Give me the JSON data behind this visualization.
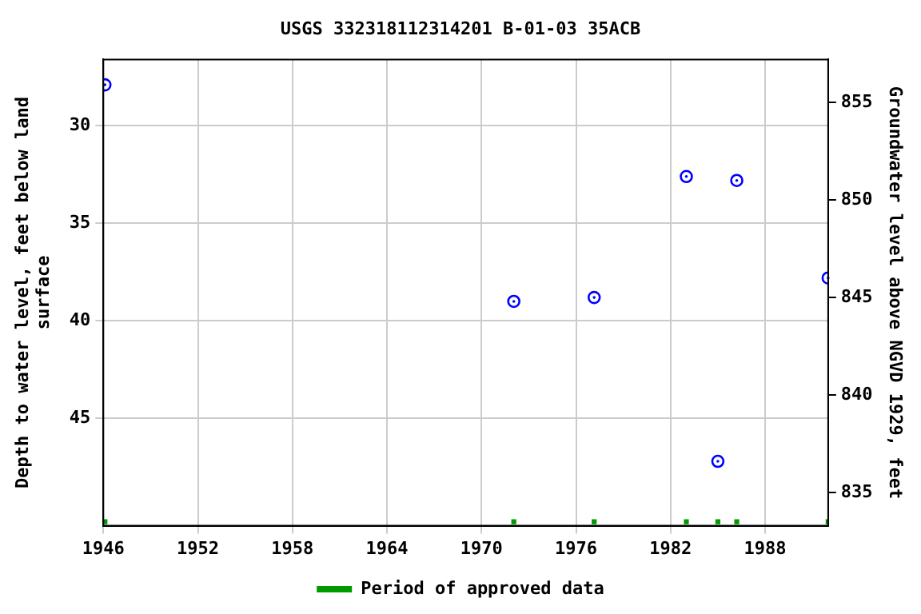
{
  "chart_data": {
    "type": "scatter",
    "title": "USGS 332318112314201 B-01-03 35ACB",
    "xlabel": null,
    "ylabel": "Depth to water level, feet below land surface",
    "y2label": "Groundwater level above NGVD 1929, feet",
    "xlim": [
      1946,
      1992
    ],
    "xticks": [
      1946,
      1952,
      1958,
      1964,
      1970,
      1976,
      1982,
      1988
    ],
    "ylim": [
      50.5,
      26.6
    ],
    "yticks": [
      30,
      35,
      40,
      45
    ],
    "y2lim": [
      833.3,
      857.2
    ],
    "y2ticks": [
      835,
      840,
      845,
      850,
      855
    ],
    "grid": true,
    "legend": "bottom",
    "series": [
      {
        "marker": "circle",
        "color": "#0000ff",
        "x": [
          1946.1,
          1972.05,
          1977.15,
          1983.0,
          1985.0,
          1986.2,
          1992.0
        ],
        "values": [
          27.9,
          39.0,
          38.8,
          32.6,
          47.2,
          32.8,
          37.8
        ]
      },
      {
        "marker": "square",
        "name": "Period of approved data",
        "color": "#009900",
        "x": [
          1946.1,
          1972.05,
          1977.15,
          1983.0,
          1985.0,
          1986.2,
          1992.0
        ],
        "values": [
          50.3,
          50.3,
          50.3,
          50.3,
          50.3,
          50.3,
          50.3
        ]
      }
    ]
  }
}
